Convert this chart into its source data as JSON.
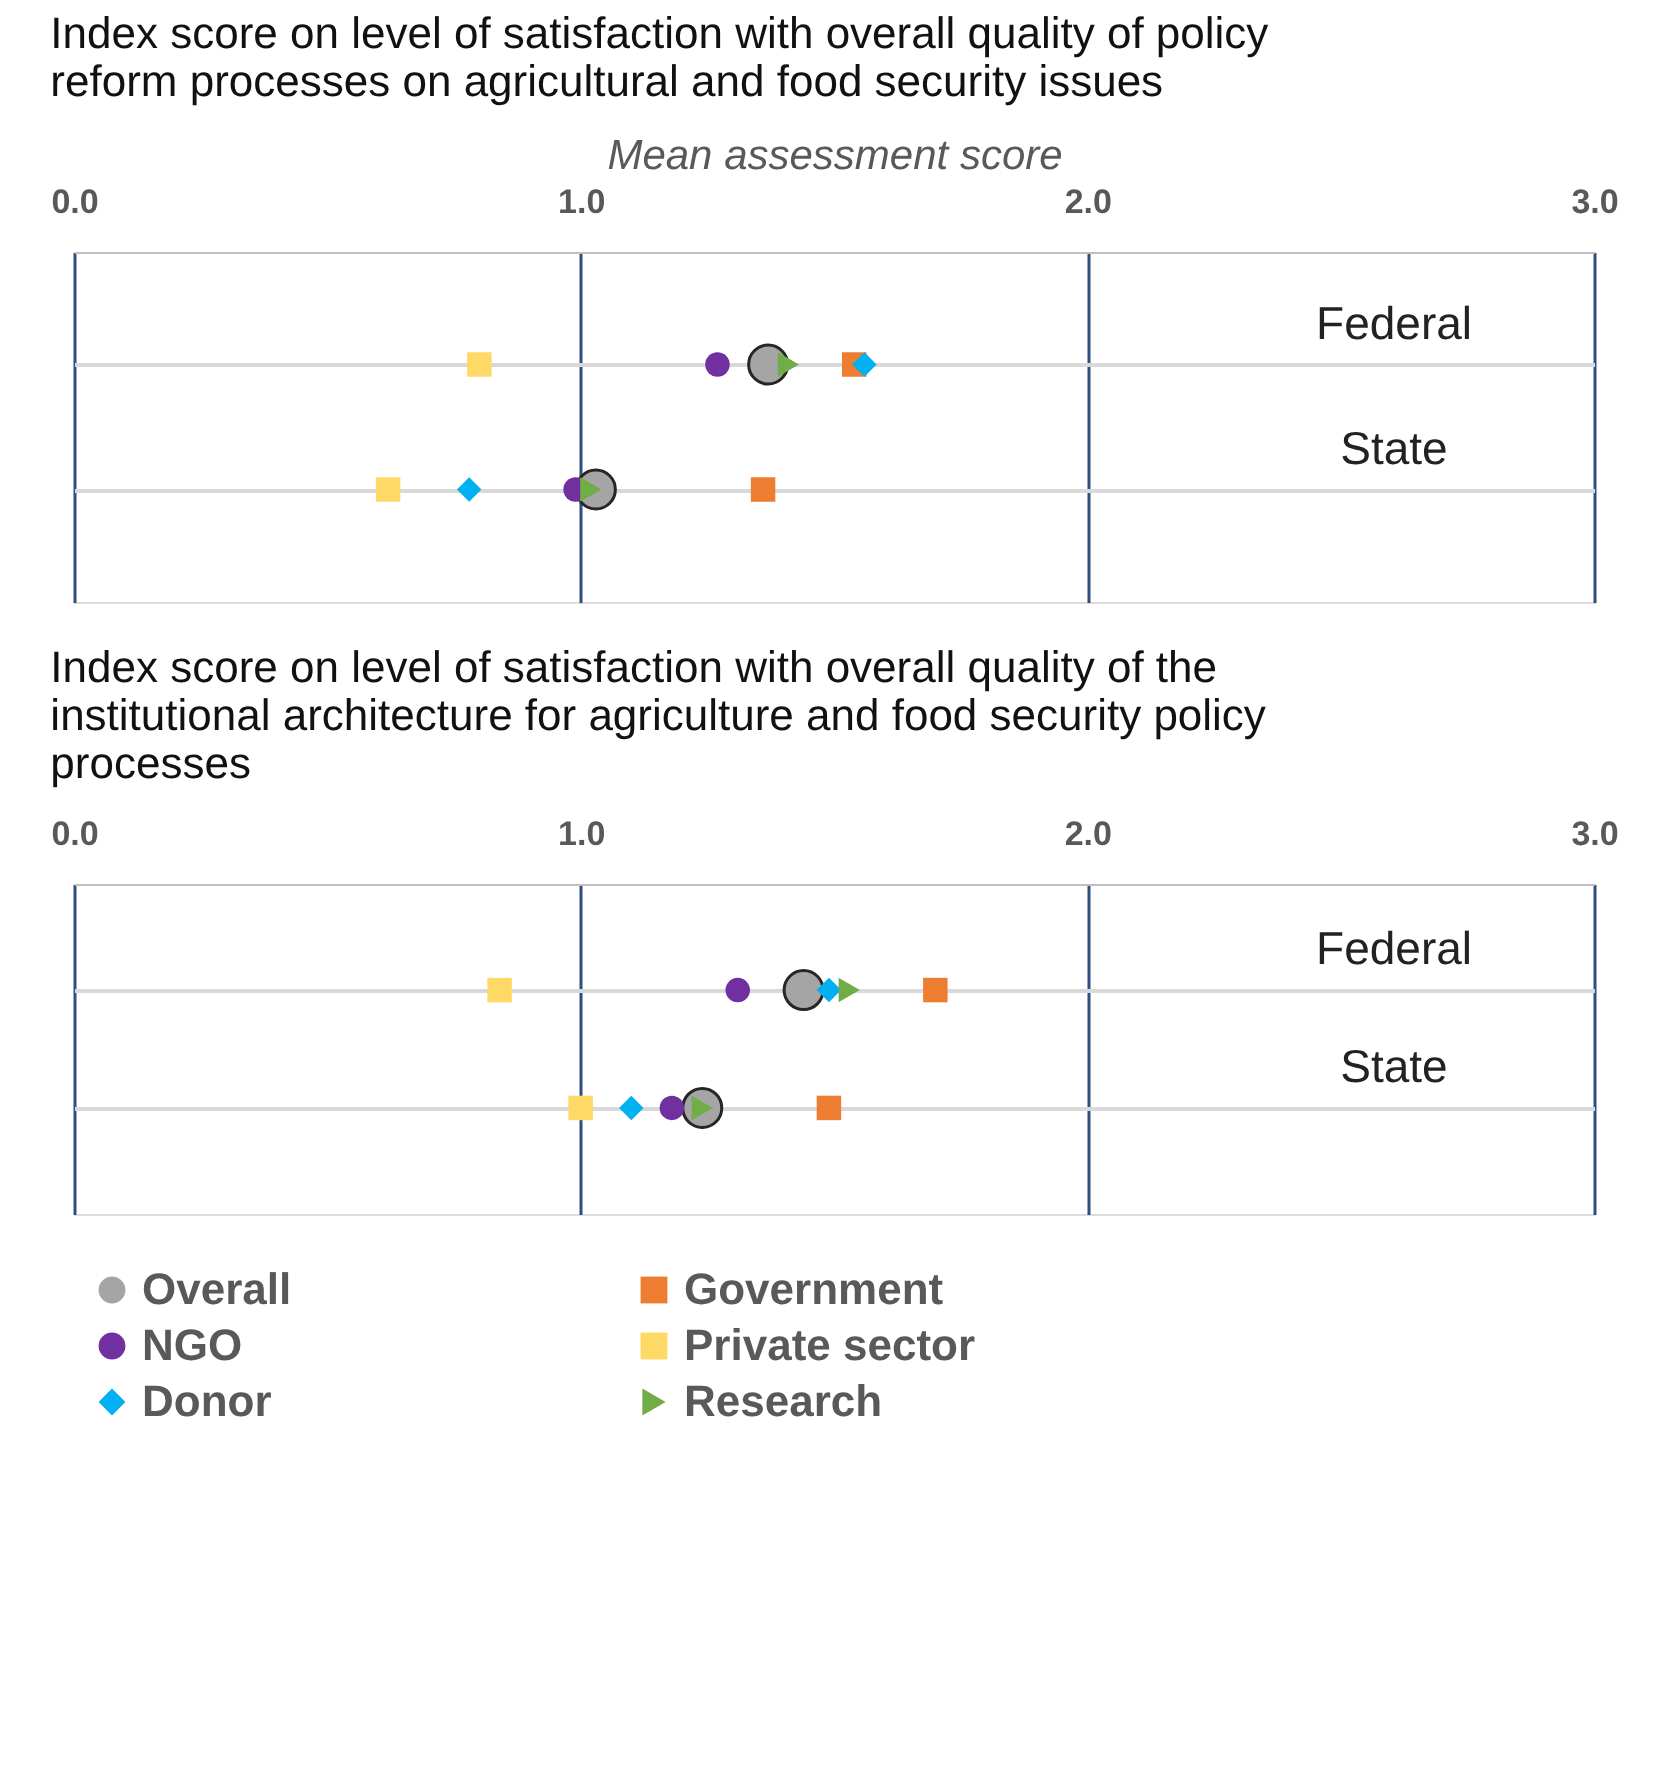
{
  "chart_data": [
    {
      "type": "scatter",
      "orientation": "horizontal",
      "title": "Index score on level of satisfaction with overall quality of policy reform processes on agricultural and food security issues",
      "xlabel": "Mean assessment score",
      "categories": [
        "Federal",
        "State"
      ],
      "xlim": [
        0,
        3
      ],
      "xticks": [
        {
          "value": 0,
          "label": "0.0"
        },
        {
          "value": 1,
          "label": "1.0"
        },
        {
          "value": 2,
          "label": "2.0"
        },
        {
          "value": 3,
          "label": "3.0"
        }
      ],
      "grid": true,
      "legend": "bottom",
      "series": [
        {
          "name": "Overall",
          "color": "#a5a5a5",
          "marker": "circle",
          "values": [
            1.37,
            1.03
          ]
        },
        {
          "name": "Government",
          "color": "#ed7d31",
          "marker": "square",
          "values": [
            1.54,
            1.36
          ]
        },
        {
          "name": "NGO",
          "color": "#7030a0",
          "marker": "circle",
          "values": [
            1.27,
            0.99
          ]
        },
        {
          "name": "Private sector",
          "color": "#ffd966",
          "marker": "square",
          "values": [
            0.8,
            0.62
          ]
        },
        {
          "name": "Donor",
          "color": "#00b0f0",
          "marker": "diamond",
          "values": [
            1.56,
            0.78
          ]
        },
        {
          "name": "Research",
          "color": "#70ad47",
          "marker": "triangle",
          "values": [
            1.41,
            1.02
          ]
        }
      ]
    },
    {
      "type": "scatter",
      "orientation": "horizontal",
      "title": "Index score on level of satisfaction with overall quality of the institutional architecture for agriculture and food security policy processes",
      "categories": [
        "Federal",
        "State"
      ],
      "xlim": [
        0,
        3
      ],
      "xticks": [
        {
          "value": 0,
          "label": "0.0"
        },
        {
          "value": 1,
          "label": "1.0"
        },
        {
          "value": 2,
          "label": "2.0"
        },
        {
          "value": 3,
          "label": "3.0"
        }
      ],
      "grid": true,
      "legend": "bottom",
      "series": [
        {
          "name": "Overall",
          "color": "#a5a5a5",
          "marker": "circle",
          "values": [
            1.44,
            1.24
          ]
        },
        {
          "name": "Government",
          "color": "#ed7d31",
          "marker": "square",
          "values": [
            1.7,
            1.49
          ]
        },
        {
          "name": "NGO",
          "color": "#7030a0",
          "marker": "circle",
          "values": [
            1.31,
            1.18
          ]
        },
        {
          "name": "Private sector",
          "color": "#ffd966",
          "marker": "square",
          "values": [
            0.84,
            1.0
          ]
        },
        {
          "name": "Donor",
          "color": "#00b0f0",
          "marker": "diamond",
          "values": [
            1.49,
            1.1
          ]
        },
        {
          "name": "Research",
          "color": "#70ad47",
          "marker": "triangle",
          "values": [
            1.53,
            1.24
          ]
        }
      ]
    }
  ]
}
